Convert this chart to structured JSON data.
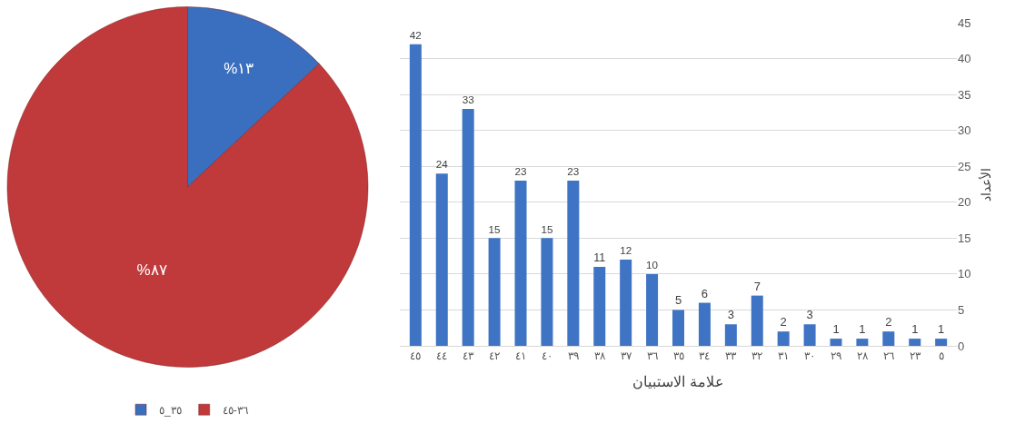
{
  "chart_data": [
    {
      "type": "bar",
      "xlabel": "علامة الاستبيان",
      "ylabel": "الأعداد",
      "categories": [
        "٤٥",
        "٤٤",
        "٤٣",
        "٤٢",
        "٤١",
        "٤٠",
        "٣٩",
        "٣٨",
        "٣٧",
        "٣٦",
        "٣٥",
        "٣٤",
        "٣٣",
        "٣٢",
        "٣١",
        "٣٠",
        "٢٩",
        "٢٨",
        "٢٦",
        "٢٣",
        "٥"
      ],
      "values": [
        42,
        24,
        33,
        15,
        23,
        15,
        23,
        11,
        12,
        10,
        5,
        6,
        3,
        7,
        2,
        3,
        1,
        1,
        2,
        1,
        1
      ],
      "color": "#3f74c4",
      "ylim": [
        0,
        45
      ],
      "yticks": [
        0,
        5,
        10,
        15,
        20,
        25,
        30,
        35,
        40,
        45
      ],
      "grid": "y",
      "data_labels": true,
      "legend": false
    },
    {
      "type": "pie",
      "categories": [
        "٣٥_٥",
        "٣٦-٤٥"
      ],
      "values": [
        13,
        87
      ],
      "colors": [
        "#3a6fbf",
        "#c0393b"
      ],
      "value_labels": [
        "%١٣",
        "%٨٧"
      ],
      "legend": "bottom"
    }
  ]
}
